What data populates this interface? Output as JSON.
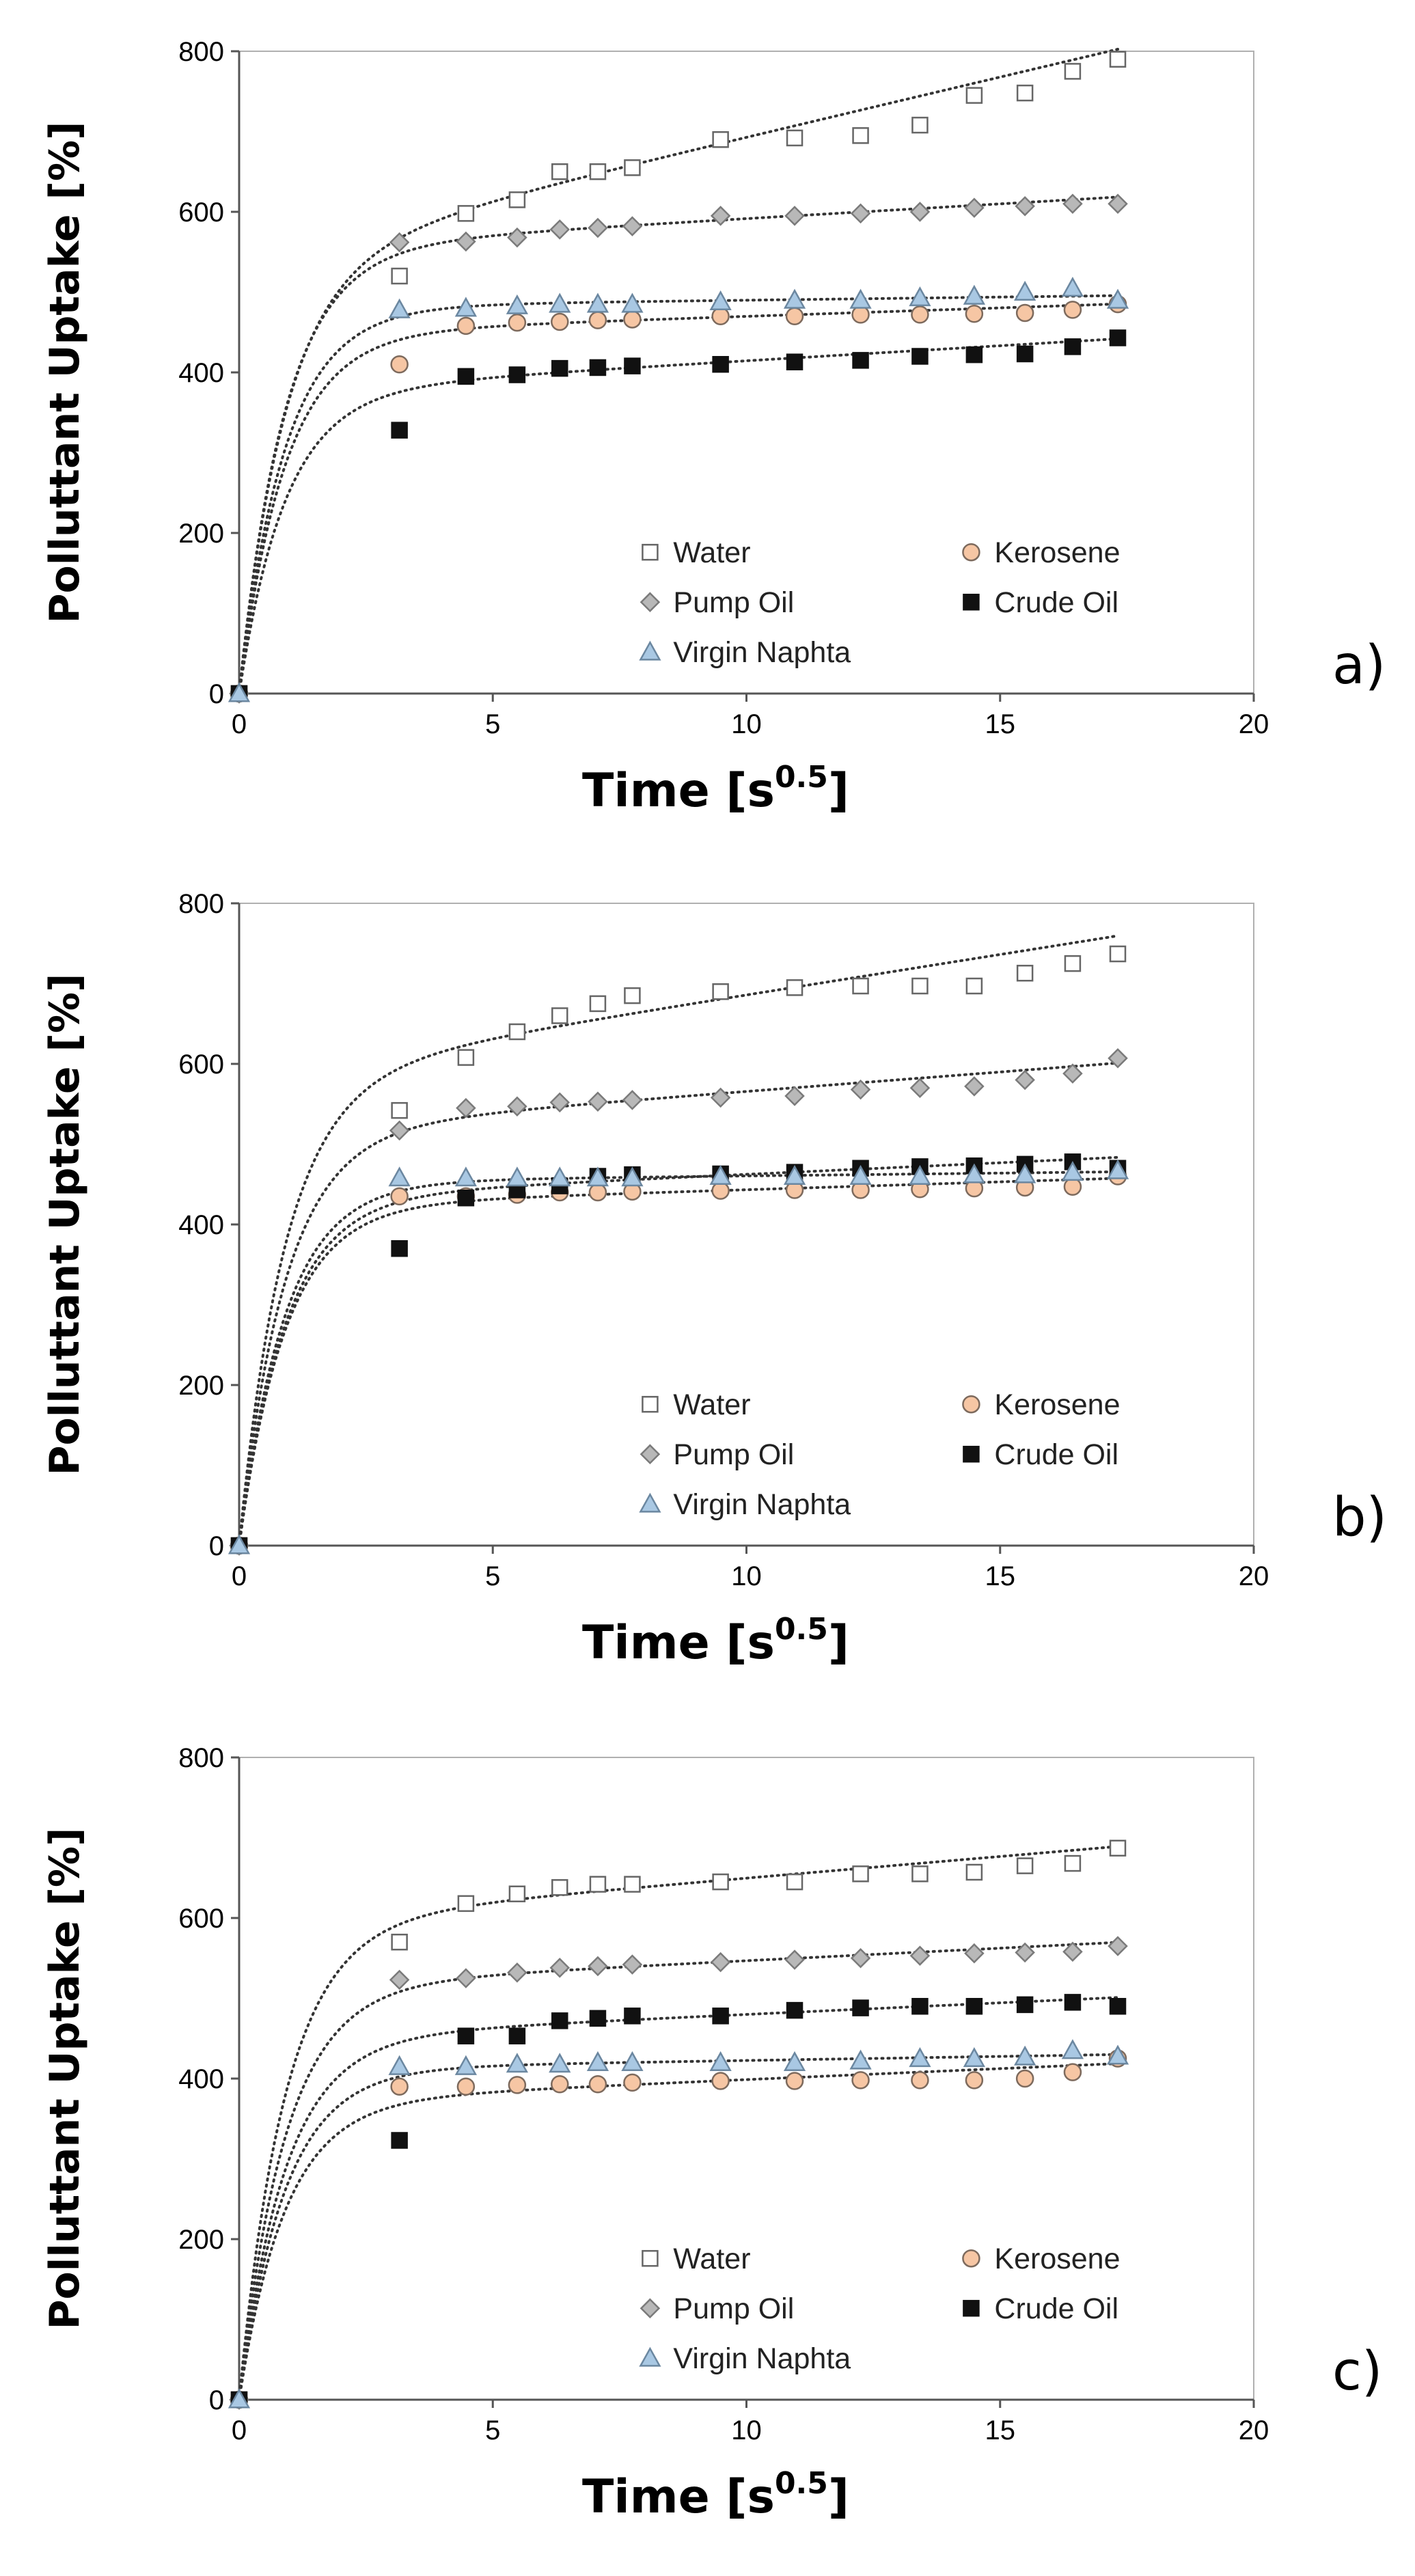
{
  "chart_data": [
    {
      "type": "scatter",
      "panel_label": "a)",
      "xlabel": "Time [s",
      "xlabel_sup": "0.5",
      "xlabel_close": "]",
      "ylabel": "Polluttant Uptake [%]",
      "xlim": [
        0,
        20
      ],
      "ylim": [
        0,
        800
      ],
      "xticks": [
        "0",
        "5",
        "10",
        "15",
        "20"
      ],
      "yticks": [
        "0",
        "200",
        "400",
        "600",
        "800"
      ],
      "x": [
        0,
        3.16,
        4.47,
        5.48,
        6.32,
        7.07,
        7.75,
        9.49,
        10.95,
        12.25,
        13.42,
        14.49,
        15.49,
        16.43,
        17.32
      ],
      "series": [
        {
          "name": "Water",
          "marker": "square-open",
          "values": [
            0,
            520,
            598,
            615,
            650,
            650,
            655,
            690,
            692,
            695,
            708,
            745,
            748,
            775,
            790
          ]
        },
        {
          "name": "Kerosene",
          "marker": "circle",
          "values": [
            0,
            410,
            458,
            462,
            463,
            465,
            466,
            470,
            470,
            472,
            472,
            473,
            474,
            478,
            485
          ]
        },
        {
          "name": "Pump Oil",
          "marker": "diamond",
          "values": [
            0,
            562,
            563,
            568,
            578,
            580,
            582,
            595,
            595,
            598,
            600,
            605,
            607,
            610,
            610
          ]
        },
        {
          "name": "Crude Oil",
          "marker": "square-filled",
          "values": [
            0,
            328,
            395,
            397,
            405,
            406,
            408,
            410,
            413,
            415,
            420,
            422,
            423,
            432,
            443
          ]
        },
        {
          "name": "Virgin Naphta",
          "marker": "triangle",
          "values": [
            0,
            478,
            480,
            483,
            485,
            485,
            485,
            488,
            490,
            490,
            493,
            495,
            500,
            505,
            490
          ]
        }
      ]
    },
    {
      "type": "scatter",
      "panel_label": "b)",
      "xlabel": "Time [s",
      "xlabel_sup": "0.5",
      "xlabel_close": "]",
      "ylabel": "Polluttant Uptake [%]",
      "xlim": [
        0,
        20
      ],
      "ylim": [
        0,
        800
      ],
      "xticks": [
        "0",
        "5",
        "10",
        "15",
        "20"
      ],
      "yticks": [
        "0",
        "200",
        "400",
        "600",
        "800"
      ],
      "x": [
        0,
        3.16,
        4.47,
        5.48,
        6.32,
        7.07,
        7.75,
        9.49,
        10.95,
        12.25,
        13.42,
        14.49,
        15.49,
        16.43,
        17.32
      ],
      "series": [
        {
          "name": "Water",
          "marker": "square-open",
          "values": [
            0,
            542,
            608,
            640,
            660,
            675,
            685,
            690,
            695,
            697,
            697,
            697,
            713,
            725,
            737
          ]
        },
        {
          "name": "Kerosene",
          "marker": "circle",
          "values": [
            0,
            435,
            435,
            437,
            440,
            440,
            441,
            442,
            443,
            443,
            444,
            445,
            446,
            447,
            460
          ]
        },
        {
          "name": "Pump Oil",
          "marker": "diamond",
          "values": [
            0,
            517,
            545,
            547,
            552,
            553,
            555,
            558,
            560,
            568,
            570,
            572,
            580,
            588,
            607
          ]
        },
        {
          "name": "Crude Oil",
          "marker": "square-filled",
          "values": [
            0,
            370,
            433,
            443,
            448,
            460,
            462,
            463,
            465,
            470,
            472,
            473,
            475,
            478,
            470
          ]
        },
        {
          "name": "Virgin Naphta",
          "marker": "triangle",
          "values": [
            0,
            458,
            458,
            458,
            458,
            458,
            458,
            460,
            460,
            460,
            460,
            462,
            462,
            465,
            467
          ]
        }
      ]
    },
    {
      "type": "scatter",
      "panel_label": "c)",
      "xlabel": "Time [s",
      "xlabel_sup": "0.5",
      "xlabel_close": "]",
      "ylabel": "Polluttant Uptake [%]",
      "xlim": [
        0,
        20
      ],
      "ylim": [
        0,
        800
      ],
      "xticks": [
        "0",
        "5",
        "10",
        "15",
        "20"
      ],
      "yticks": [
        "0",
        "200",
        "400",
        "600",
        "800"
      ],
      "x": [
        0,
        3.16,
        4.47,
        5.48,
        6.32,
        7.07,
        7.75,
        9.49,
        10.95,
        12.25,
        13.42,
        14.49,
        15.49,
        16.43,
        17.32
      ],
      "series": [
        {
          "name": "Water",
          "marker": "square-open",
          "values": [
            0,
            570,
            618,
            630,
            638,
            642,
            642,
            645,
            645,
            655,
            655,
            657,
            665,
            668,
            687
          ]
        },
        {
          "name": "Kerosene",
          "marker": "circle",
          "values": [
            0,
            390,
            390,
            392,
            393,
            393,
            395,
            397,
            397,
            398,
            398,
            398,
            400,
            408,
            425
          ]
        },
        {
          "name": "Pump Oil",
          "marker": "diamond",
          "values": [
            0,
            523,
            525,
            532,
            538,
            540,
            542,
            545,
            548,
            550,
            553,
            556,
            557,
            558,
            565
          ]
        },
        {
          "name": "Crude Oil",
          "marker": "square-filled",
          "values": [
            0,
            323,
            453,
            453,
            472,
            475,
            478,
            478,
            485,
            488,
            490,
            490,
            492,
            495,
            490
          ]
        },
        {
          "name": "Virgin Naphta",
          "marker": "triangle",
          "values": [
            0,
            415,
            415,
            418,
            418,
            420,
            420,
            420,
            420,
            422,
            425,
            425,
            427,
            435,
            428
          ]
        }
      ]
    }
  ]
}
